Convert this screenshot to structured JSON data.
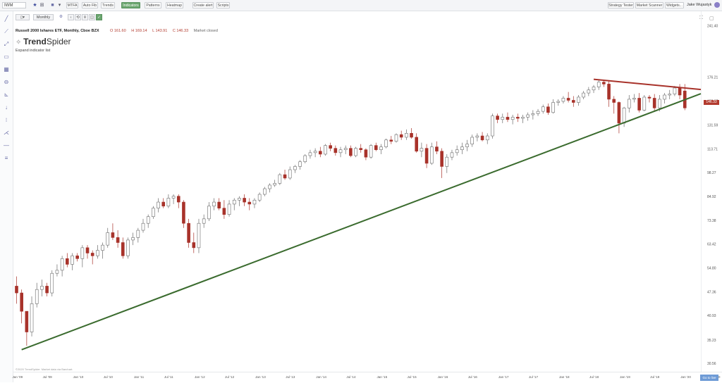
{
  "topbar": {
    "symbol": "IWM",
    "buttons": [
      "MTFA",
      "Auto Fib",
      "Trends",
      "Indicators",
      "Patterns",
      "Heatmap",
      "Create alert",
      "Scripts"
    ],
    "active_button": "Indicators",
    "right_buttons": [
      "Strategy Tester",
      "Market Scanner",
      "Widgets..."
    ],
    "user_name": "Jake Wujastyk"
  },
  "chart_toolbar": {
    "interval": "Monthly"
  },
  "legend": {
    "name": "Russell 2000 Ishares ETF, Monthly, Cboe BZX",
    "open": "O 161.60",
    "high": "H 169.14",
    "low": "L 143.91",
    "close": "C 146.33",
    "status": "Market closed"
  },
  "logo": {
    "bold": "Trend",
    "light": "Spider"
  },
  "expand_text": "Expand indicator list",
  "copyright": "©2020 TrendSpider. Market data via Barchart.",
  "price_tag": "146.33",
  "goto_label": "Go to live",
  "colors": {
    "up": "#ffffff",
    "down": "#a8322a",
    "support": "#3a6b2e",
    "resistance": "#a8322a",
    "accent": "#6aa56e"
  },
  "chart_data": {
    "type": "candlestick",
    "title": "Russell 2000 Ishares ETF, Monthly, Cboe BZX",
    "scale": "log",
    "ylim": [
      29.0,
      264.0
    ],
    "y_ticks": [
      30.56,
      35.23,
      40.93,
      47.36,
      54.8,
      63.42,
      73.38,
      84.92,
      98.27,
      113.71,
      131.59,
      152.27,
      176.21,
      241.4
    ],
    "x_ticks": [
      "Jan '09",
      "Jul '09",
      "Jan '10",
      "Jul '10",
      "Jan '11",
      "Jul '11",
      "Jan '12",
      "Jul '12",
      "Jan '13",
      "Jul '13",
      "Jan '14",
      "Jul '14",
      "Jan '15",
      "Jul '15",
      "Jan '16",
      "Jul '16",
      "Jan '17",
      "Jul '17",
      "Jan '18",
      "Jul '18",
      "Jan '19",
      "Jul '19",
      "Jan '20",
      "Jul '20"
    ],
    "candles_ohlc": [
      [
        49,
        52,
        44,
        47
      ],
      [
        47,
        48,
        39,
        42
      ],
      [
        42,
        42,
        34,
        37
      ],
      [
        37,
        46,
        36,
        44
      ],
      [
        44,
        50,
        43,
        48
      ],
      [
        48,
        51,
        46,
        49
      ],
      [
        49,
        50,
        46,
        47
      ],
      [
        47,
        54,
        46,
        53
      ],
      [
        53,
        56,
        52,
        54
      ],
      [
        54,
        59,
        52,
        58
      ],
      [
        58,
        60,
        55,
        56
      ],
      [
        56,
        60,
        54,
        59
      ],
      [
        59,
        60,
        57,
        58
      ],
      [
        58,
        63,
        55,
        62
      ],
      [
        62,
        63,
        58,
        60
      ],
      [
        60,
        61,
        56,
        59
      ],
      [
        59,
        63,
        58,
        61
      ],
      [
        61,
        64,
        58,
        63
      ],
      [
        63,
        70,
        62,
        68
      ],
      [
        68,
        72,
        65,
        66
      ],
      [
        66,
        69,
        62,
        64
      ],
      [
        64,
        66,
        58,
        59
      ],
      [
        59,
        66,
        58,
        65
      ],
      [
        65,
        68,
        63,
        66
      ],
      [
        66,
        70,
        64,
        69
      ],
      [
        69,
        74,
        68,
        72
      ],
      [
        72,
        76,
        70,
        75
      ],
      [
        75,
        80,
        74,
        79
      ],
      [
        79,
        84,
        77,
        82
      ],
      [
        82,
        84,
        79,
        80
      ],
      [
        80,
        86,
        79,
        84
      ],
      [
        84,
        86,
        81,
        85
      ],
      [
        85,
        86,
        79,
        82
      ],
      [
        82,
        83,
        70,
        72
      ],
      [
        72,
        74,
        62,
        64
      ],
      [
        64,
        68,
        60,
        62
      ],
      [
        62,
        74,
        60,
        72
      ],
      [
        72,
        76,
        70,
        74
      ],
      [
        74,
        82,
        73,
        80
      ],
      [
        80,
        84,
        78,
        82
      ],
      [
        82,
        84,
        78,
        79
      ],
      [
        79,
        83,
        74,
        76
      ],
      [
        76,
        83,
        75,
        81
      ],
      [
        81,
        84,
        78,
        83
      ],
      [
        83,
        85,
        80,
        84
      ],
      [
        84,
        86,
        80,
        82
      ],
      [
        82,
        84,
        78,
        81
      ],
      [
        81,
        84,
        79,
        83
      ],
      [
        83,
        87,
        82,
        86
      ],
      [
        86,
        90,
        85,
        89
      ],
      [
        89,
        92,
        87,
        91
      ],
      [
        91,
        94,
        90,
        92
      ],
      [
        92,
        98,
        91,
        97
      ],
      [
        97,
        100,
        94,
        95
      ],
      [
        95,
        102,
        94,
        100
      ],
      [
        100,
        103,
        98,
        102
      ],
      [
        102,
        106,
        100,
        105
      ],
      [
        105,
        110,
        104,
        109
      ],
      [
        109,
        113,
        107,
        111
      ],
      [
        111,
        114,
        108,
        112
      ],
      [
        112,
        115,
        108,
        110
      ],
      [
        110,
        117,
        109,
        116
      ],
      [
        116,
        118,
        112,
        114
      ],
      [
        114,
        116,
        109,
        111
      ],
      [
        111,
        115,
        108,
        113
      ],
      [
        113,
        116,
        110,
        114
      ],
      [
        114,
        116,
        108,
        109
      ],
      [
        109,
        115,
        108,
        114
      ],
      [
        114,
        117,
        111,
        113
      ],
      [
        113,
        114,
        106,
        108
      ],
      [
        108,
        117,
        107,
        116
      ],
      [
        116,
        118,
        112,
        113
      ],
      [
        113,
        117,
        110,
        115
      ],
      [
        115,
        121,
        114,
        120
      ],
      [
        120,
        123,
        117,
        119
      ],
      [
        119,
        125,
        118,
        124
      ],
      [
        124,
        127,
        120,
        122
      ],
      [
        122,
        128,
        120,
        125
      ],
      [
        125,
        129,
        121,
        122
      ],
      [
        122,
        125,
        111,
        112
      ],
      [
        112,
        118,
        108,
        114
      ],
      [
        114,
        117,
        101,
        104
      ],
      [
        104,
        118,
        103,
        115
      ],
      [
        115,
        119,
        110,
        112
      ],
      [
        112,
        114,
        95,
        102
      ],
      [
        102,
        110,
        98,
        108
      ],
      [
        108,
        113,
        106,
        111
      ],
      [
        111,
        116,
        109,
        113
      ],
      [
        113,
        118,
        110,
        115
      ],
      [
        115,
        120,
        112,
        117
      ],
      [
        117,
        124,
        115,
        122
      ],
      [
        122,
        125,
        119,
        123
      ],
      [
        123,
        126,
        119,
        120
      ],
      [
        120,
        125,
        117,
        123
      ],
      [
        123,
        141,
        121,
        139
      ],
      [
        139,
        141,
        133,
        136
      ],
      [
        136,
        141,
        133,
        138
      ],
      [
        138,
        142,
        134,
        136
      ],
      [
        136,
        140,
        132,
        138
      ],
      [
        138,
        141,
        134,
        137
      ],
      [
        137,
        140,
        133,
        138
      ],
      [
        138,
        142,
        135,
        140
      ],
      [
        140,
        144,
        136,
        141
      ],
      [
        141,
        145,
        139,
        143
      ],
      [
        143,
        149,
        141,
        147
      ],
      [
        147,
        150,
        140,
        142
      ],
      [
        142,
        154,
        141,
        151
      ],
      [
        151,
        154,
        148,
        152
      ],
      [
        152,
        157,
        150,
        155
      ],
      [
        155,
        161,
        151,
        153
      ],
      [
        153,
        157,
        147,
        151
      ],
      [
        151,
        158,
        148,
        156
      ],
      [
        156,
        162,
        154,
        160
      ],
      [
        160,
        166,
        157,
        163
      ],
      [
        163,
        168,
        160,
        166
      ],
      [
        166,
        173,
        163,
        171
      ],
      [
        171,
        173,
        166,
        169
      ],
      [
        169,
        172,
        147,
        154
      ],
      [
        154,
        157,
        141,
        151
      ],
      [
        151,
        152,
        125,
        133
      ],
      [
        133,
        147,
        130,
        146
      ],
      [
        146,
        158,
        142,
        154
      ],
      [
        154,
        159,
        151,
        155
      ],
      [
        155,
        160,
        142,
        144
      ],
      [
        144,
        158,
        143,
        156
      ],
      [
        156,
        158,
        151,
        155
      ],
      [
        155,
        159,
        143,
        146
      ],
      [
        146,
        158,
        143,
        154
      ],
      [
        154,
        160,
        150,
        158
      ],
      [
        158,
        163,
        154,
        159
      ],
      [
        159,
        167,
        157,
        165
      ],
      [
        165,
        169,
        154,
        158
      ],
      [
        162,
        169,
        144,
        146
      ]
    ],
    "trendlines": [
      {
        "name": "Support",
        "x": [
          "Feb '09",
          "Jan '20"
        ],
        "y": [
          33.2,
          153.5
        ]
      },
      {
        "name": "Resistance",
        "x": [
          "Jul '18",
          "Jan '20"
        ],
        "y": [
          174,
          165
        ]
      }
    ]
  }
}
